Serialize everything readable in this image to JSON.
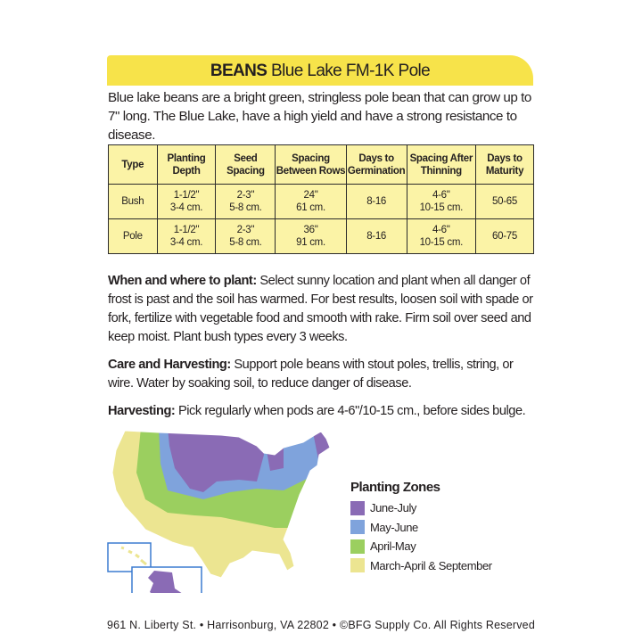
{
  "title": {
    "bold": "BEANS",
    "rest": "Blue Lake  FM-1K Pole"
  },
  "description": "Blue lake beans are a bright green, stringless pole bean that can grow up to 7\" long.  The Blue Lake, have a high yield and have a strong resistance to disease.",
  "table": {
    "headers": [
      [
        "Type"
      ],
      [
        "Planting",
        "Depth"
      ],
      [
        "Seed",
        "Spacing"
      ],
      [
        "Spacing",
        "Between Rows"
      ],
      [
        "Days to",
        "Germination"
      ],
      [
        "Spacing After",
        "Thinning"
      ],
      [
        "Days to",
        "Maturity"
      ]
    ],
    "rows": [
      [
        [
          "Bush"
        ],
        [
          "1-1/2\"",
          "3-4 cm."
        ],
        [
          "2-3\"",
          "5-8 cm."
        ],
        [
          "24\"",
          "61 cm."
        ],
        [
          "8-16"
        ],
        [
          "4-6\"",
          "10-15 cm."
        ],
        [
          "50-65"
        ]
      ],
      [
        [
          "Pole"
        ],
        [
          "1-1/2\"",
          "3-4 cm."
        ],
        [
          "2-3\"",
          "5-8 cm."
        ],
        [
          "36\"",
          "91 cm."
        ],
        [
          "8-16"
        ],
        [
          "4-6\"",
          "10-15 cm."
        ],
        [
          "60-75"
        ]
      ]
    ]
  },
  "sections": [
    {
      "heading": "When and where to plant:",
      "text": " Select sunny location and plant when all danger of frost is past and the soil has warmed. For best results, loosen soil with spade or fork, fertilize with vegetable food and smooth with rake. Firm soil over seed and keep moist. Plant bush types every 3 weeks."
    },
    {
      "heading": "Care and Harvesting:",
      "text": " Support pole beans with stout poles, trellis, string, or wire. Water by soaking soil, to reduce danger of disease."
    },
    {
      "heading": "Harvesting:",
      "text": "  Pick regularly when pods are 4-6\"/10-15 cm., before sides bulge."
    }
  ],
  "legend": {
    "title": "Planting Zones",
    "items": [
      {
        "label": "June-July",
        "color": "#8a6bb5"
      },
      {
        "label": "May-June",
        "color": "#7fa3dc"
      },
      {
        "label": "April-May",
        "color": "#9bcf5f"
      },
      {
        "label": "March-April & September",
        "color": "#ece591"
      }
    ]
  },
  "footer": "961 N. Liberty St. • Harrisonburg, VA 22802 • ©BFG Supply Co. All Rights Reserved"
}
